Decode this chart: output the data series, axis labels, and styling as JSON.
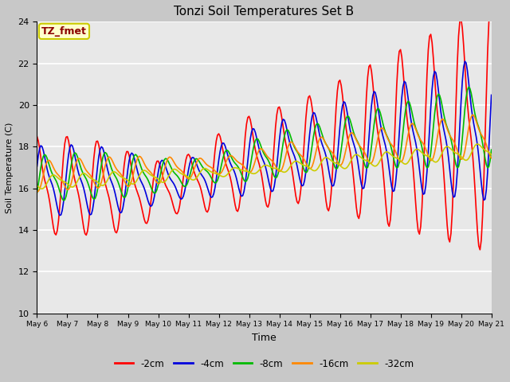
{
  "title": "Tonzi Soil Temperatures Set B",
  "xlabel": "Time",
  "ylabel": "Soil Temperature (C)",
  "ylim": [
    10,
    24
  ],
  "annotation_text": "TZ_fmet",
  "annotation_color": "#8B0000",
  "annotation_bg": "#FFFFCC",
  "annotation_border": "#CCCC00",
  "fig_bg_color": "#C8C8C8",
  "plot_bg_color": "#E8E8E8",
  "series_colors": [
    "#FF0000",
    "#0000DD",
    "#00BB00",
    "#FF8800",
    "#CCCC00"
  ],
  "series_labels": [
    "-2cm",
    "-4cm",
    "-8cm",
    "-16cm",
    "-32cm"
  ],
  "xtick_labels": [
    "May 6",
    "May 7",
    "May 8",
    "May 9",
    "May 10",
    "May 11",
    "May 12",
    "May 13",
    "May 14",
    "May 15",
    "May 16",
    "May 17",
    "May 18",
    "May 19",
    "May 20",
    "May 21"
  ],
  "ytick_vals": [
    10,
    12,
    14,
    16,
    18,
    20,
    22,
    24
  ]
}
